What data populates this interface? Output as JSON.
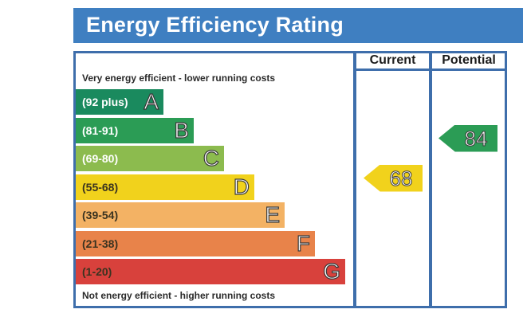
{
  "title": "Energy Efficiency Rating",
  "columns": {
    "current": "Current",
    "potential": "Potential"
  },
  "top_caption": "Very energy efficient - lower running costs",
  "bottom_caption": "Not energy efficient - higher running costs",
  "chart_data": {
    "type": "bar",
    "bands": [
      {
        "range": "(92 plus)",
        "letter": "A",
        "color": "#1a8a5e"
      },
      {
        "range": "(81-91)",
        "letter": "B",
        "color": "#2b9c55"
      },
      {
        "range": "(69-80)",
        "letter": "C",
        "color": "#8cbb4e"
      },
      {
        "range": "(55-68)",
        "letter": "D",
        "color": "#f1d21c"
      },
      {
        "range": "(39-54)",
        "letter": "E",
        "color": "#f3b264"
      },
      {
        "range": "(21-38)",
        "letter": "F",
        "color": "#e8834a"
      },
      {
        "range": "(1-20)",
        "letter": "G",
        "color": "#d8413c"
      }
    ],
    "current": {
      "value": "68",
      "band": "D",
      "color": "#f1d21c"
    },
    "potential": {
      "value": "84",
      "band": "B",
      "color": "#2b9c55"
    }
  }
}
